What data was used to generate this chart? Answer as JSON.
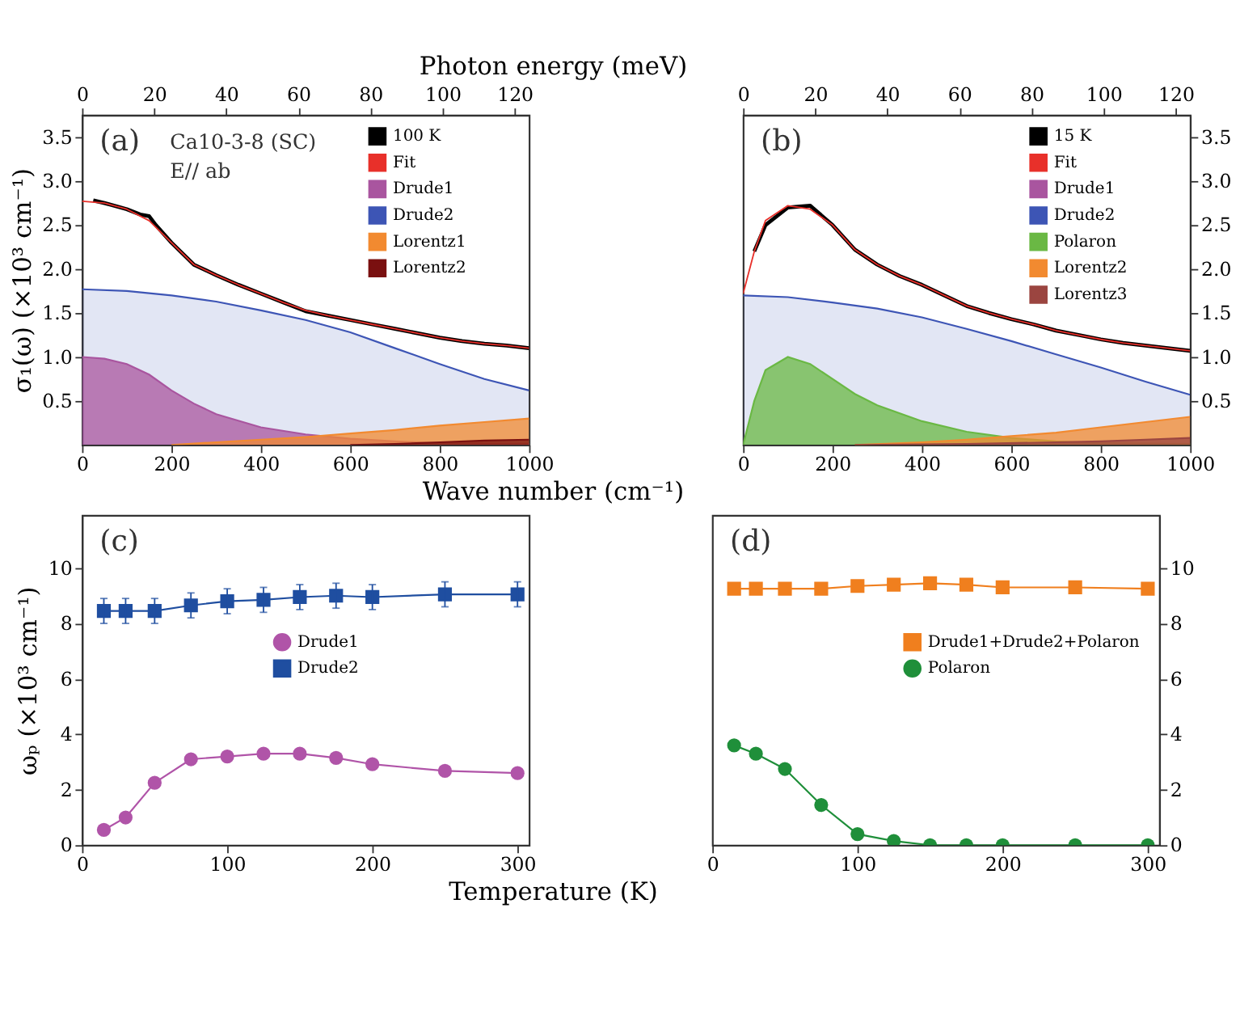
{
  "chart_data": [
    {
      "type": "area",
      "title": null,
      "annotations": [
        "(a)",
        "Ca10-3-8 (SC)",
        "E// ab"
      ],
      "xlabel": "Wave number (cm⁻¹)",
      "x2label": "Photon energy (meV)",
      "ylabel": "σ₁(ω) (×10³ cm⁻¹)",
      "xlim": [
        0,
        1000
      ],
      "xticks": [
        0,
        200,
        400,
        600,
        800,
        1000
      ],
      "x2lim": [
        0,
        124
      ],
      "x2ticks": [
        0,
        20,
        40,
        60,
        80,
        100,
        120
      ],
      "ylim": [
        0,
        3.75
      ],
      "yticks": [
        0.5,
        {
          "value": 1,
          "label": "1.0"
        },
        1.5,
        {
          "value": 2,
          "label": "2.0"
        },
        2.5,
        {
          "value": 3,
          "label": "3.0"
        },
        3.5
      ],
      "legend": "top right",
      "grid": false,
      "series": [
        {
          "name": "100 K",
          "type": "line",
          "color": "#000000",
          "x": [
            25,
            50,
            100,
            130,
            150,
            165,
            200,
            250,
            300,
            350,
            400,
            450,
            500,
            550,
            600,
            650,
            700,
            750,
            800,
            850,
            900,
            950,
            1000
          ],
          "values": [
            2.78,
            2.75,
            2.68,
            2.62,
            2.6,
            2.5,
            2.3,
            2.05,
            1.93,
            1.82,
            1.72,
            1.62,
            1.52,
            1.47,
            1.42,
            1.37,
            1.32,
            1.27,
            1.22,
            1.18,
            1.15,
            1.13,
            1.1
          ]
        },
        {
          "name": "Fit",
          "type": "line",
          "color": "#e8302a",
          "x": [
            0,
            50,
            100,
            150,
            200,
            250,
            300,
            350,
            400,
            450,
            500,
            550,
            600,
            650,
            700,
            750,
            800,
            850,
            900,
            950,
            1000
          ],
          "values": [
            2.77,
            2.75,
            2.68,
            2.55,
            2.3,
            2.05,
            1.93,
            1.82,
            1.72,
            1.62,
            1.53,
            1.47,
            1.42,
            1.37,
            1.32,
            1.27,
            1.22,
            1.18,
            1.15,
            1.13,
            1.1
          ]
        },
        {
          "name": "Drude1",
          "type": "area",
          "color": "#a9559f",
          "x": [
            0,
            50,
            100,
            150,
            200,
            250,
            300,
            400,
            500,
            600,
            700,
            800,
            1000
          ],
          "values": [
            1.0,
            0.98,
            0.92,
            0.8,
            0.62,
            0.47,
            0.35,
            0.2,
            0.12,
            0.07,
            0.04,
            0.02,
            0.01
          ]
        },
        {
          "name": "Drude2",
          "type": "area",
          "color": "#3d55b5",
          "x": [
            0,
            100,
            200,
            300,
            400,
            500,
            600,
            700,
            800,
            900,
            1000
          ],
          "values": [
            1.77,
            1.75,
            1.7,
            1.63,
            1.53,
            1.42,
            1.28,
            1.1,
            0.92,
            0.75,
            0.62
          ]
        },
        {
          "name": "Lorentz1",
          "type": "area",
          "color": "#f28a30",
          "x": [
            200,
            300,
            400,
            500,
            600,
            700,
            800,
            900,
            1000
          ],
          "values": [
            0,
            0.03,
            0.06,
            0.09,
            0.13,
            0.17,
            0.22,
            0.26,
            0.3
          ]
        },
        {
          "name": "Lorentz2",
          "type": "area",
          "color": "#7a1010",
          "x": [
            600,
            700,
            800,
            900,
            1000
          ],
          "values": [
            0,
            0.01,
            0.03,
            0.05,
            0.06
          ]
        }
      ]
    },
    {
      "type": "area",
      "annotations": [
        "(b)"
      ],
      "xlim": [
        0,
        1000
      ],
      "xticks": [
        0,
        200,
        400,
        600,
        800,
        1000
      ],
      "x2lim": [
        0,
        124
      ],
      "x2ticks": [
        0,
        20,
        40,
        60,
        80,
        100,
        120
      ],
      "ylim": [
        0,
        3.75
      ],
      "yticks": [
        0.5,
        {
          "value": 1,
          "label": "1.0"
        },
        1.5,
        {
          "value": 2,
          "label": "2.0"
        },
        2.5,
        {
          "value": 3,
          "label": "3.0"
        },
        3.5
      ],
      "legend": "top right",
      "grid": false,
      "series": [
        {
          "name": "15 K",
          "type": "line",
          "color": "#000000",
          "x": [
            25,
            50,
            100,
            150,
            200,
            250,
            300,
            350,
            400,
            450,
            500,
            550,
            600,
            650,
            700,
            750,
            800,
            850,
            900,
            950,
            1000
          ],
          "values": [
            2.2,
            2.5,
            2.7,
            2.72,
            2.5,
            2.22,
            2.05,
            1.92,
            1.82,
            1.7,
            1.58,
            1.5,
            1.43,
            1.37,
            1.3,
            1.25,
            1.2,
            1.16,
            1.13,
            1.1,
            1.07
          ]
        },
        {
          "name": "Fit",
          "type": "line",
          "color": "#e8302a",
          "x": [
            0,
            25,
            50,
            100,
            150,
            200,
            250,
            300,
            350,
            400,
            450,
            500,
            550,
            600,
            650,
            700,
            750,
            800,
            850,
            900,
            950,
            1000
          ],
          "values": [
            1.72,
            2.2,
            2.55,
            2.72,
            2.68,
            2.5,
            2.22,
            2.05,
            1.92,
            1.82,
            1.7,
            1.58,
            1.5,
            1.43,
            1.37,
            1.3,
            1.25,
            1.2,
            1.16,
            1.13,
            1.1,
            1.07
          ]
        },
        {
          "name": "Drude1",
          "type": "area",
          "color": "#a9559f"
        },
        {
          "name": "Drude2",
          "type": "area",
          "color": "#3d55b5",
          "x": [
            0,
            100,
            200,
            300,
            400,
            500,
            600,
            700,
            800,
            900,
            1000
          ],
          "values": [
            1.7,
            1.68,
            1.62,
            1.55,
            1.45,
            1.32,
            1.18,
            1.03,
            0.88,
            0.72,
            0.57
          ]
        },
        {
          "name": "Polaron",
          "type": "area",
          "color": "#6ab844",
          "x": [
            0,
            25,
            50,
            100,
            150,
            200,
            250,
            300,
            400,
            500,
            600,
            700,
            800,
            1000
          ],
          "values": [
            0,
            0.5,
            0.85,
            1.0,
            0.92,
            0.75,
            0.58,
            0.45,
            0.27,
            0.15,
            0.08,
            0.04,
            0.02,
            0.01
          ]
        },
        {
          "name": "Lorentz2",
          "type": "area",
          "color": "#f28a30",
          "x": [
            250,
            400,
            500,
            600,
            700,
            800,
            900,
            1000
          ],
          "values": [
            0,
            0.03,
            0.06,
            0.1,
            0.14,
            0.2,
            0.26,
            0.32
          ]
        },
        {
          "name": "Lorentz3",
          "type": "area",
          "color": "#9b4540",
          "x": [
            250,
            500,
            800,
            900,
            1000
          ],
          "values": [
            0,
            0.01,
            0.04,
            0.06,
            0.08
          ]
        }
      ]
    },
    {
      "type": "line",
      "annotations": [
        "(c)"
      ],
      "xlabel": "Temperature (K)",
      "ylabel": "ωₚ (×10³ cm⁻¹)",
      "xlim": [
        0,
        308
      ],
      "xticks": [
        0,
        100,
        200,
        300
      ],
      "ylim": [
        0,
        11.9
      ],
      "yticks": [
        0,
        2,
        4,
        6,
        8,
        10
      ],
      "legend": "right",
      "grid": false,
      "x": [
        15,
        30,
        50,
        75,
        100,
        125,
        150,
        175,
        200,
        250,
        300
      ],
      "series": [
        {
          "name": "Drude1",
          "color": "#b054a8",
          "marker": "circle",
          "values": [
            0.55,
            1.0,
            2.25,
            3.1,
            3.2,
            3.3,
            3.3,
            3.15,
            2.92,
            2.68,
            2.6
          ]
        },
        {
          "name": "Drude2",
          "color": "#1f4ea0",
          "marker": "square",
          "values": [
            8.45,
            8.45,
            8.45,
            8.65,
            8.8,
            8.85,
            8.95,
            9.0,
            8.95,
            9.05,
            9.05
          ],
          "errors": [
            0.45,
            0.45,
            0.45,
            0.45,
            0.45,
            0.45,
            0.45,
            0.45,
            0.45,
            0.45,
            0.45
          ]
        }
      ]
    },
    {
      "type": "line",
      "annotations": [
        "(d)"
      ],
      "xlim": [
        0,
        308
      ],
      "xticks": [
        0,
        100,
        200,
        300
      ],
      "ylim": [
        0,
        11.9
      ],
      "yticks": [
        0,
        2,
        4,
        6,
        8,
        10
      ],
      "legend": "right",
      "grid": false,
      "x": [
        15,
        30,
        50,
        75,
        100,
        125,
        150,
        175,
        200,
        250,
        300
      ],
      "series": [
        {
          "name": "Drude1+Drude2+Polaron",
          "color": "#f07f1e",
          "marker": "square",
          "values": [
            9.25,
            9.25,
            9.25,
            9.25,
            9.35,
            9.4,
            9.45,
            9.4,
            9.3,
            9.3,
            9.25
          ]
        },
        {
          "name": "Polaron",
          "color": "#1f8f3a",
          "marker": "circle",
          "values": [
            3.6,
            3.3,
            2.75,
            1.45,
            0.4,
            0.15,
            0,
            0,
            0,
            0,
            0
          ]
        }
      ]
    }
  ]
}
